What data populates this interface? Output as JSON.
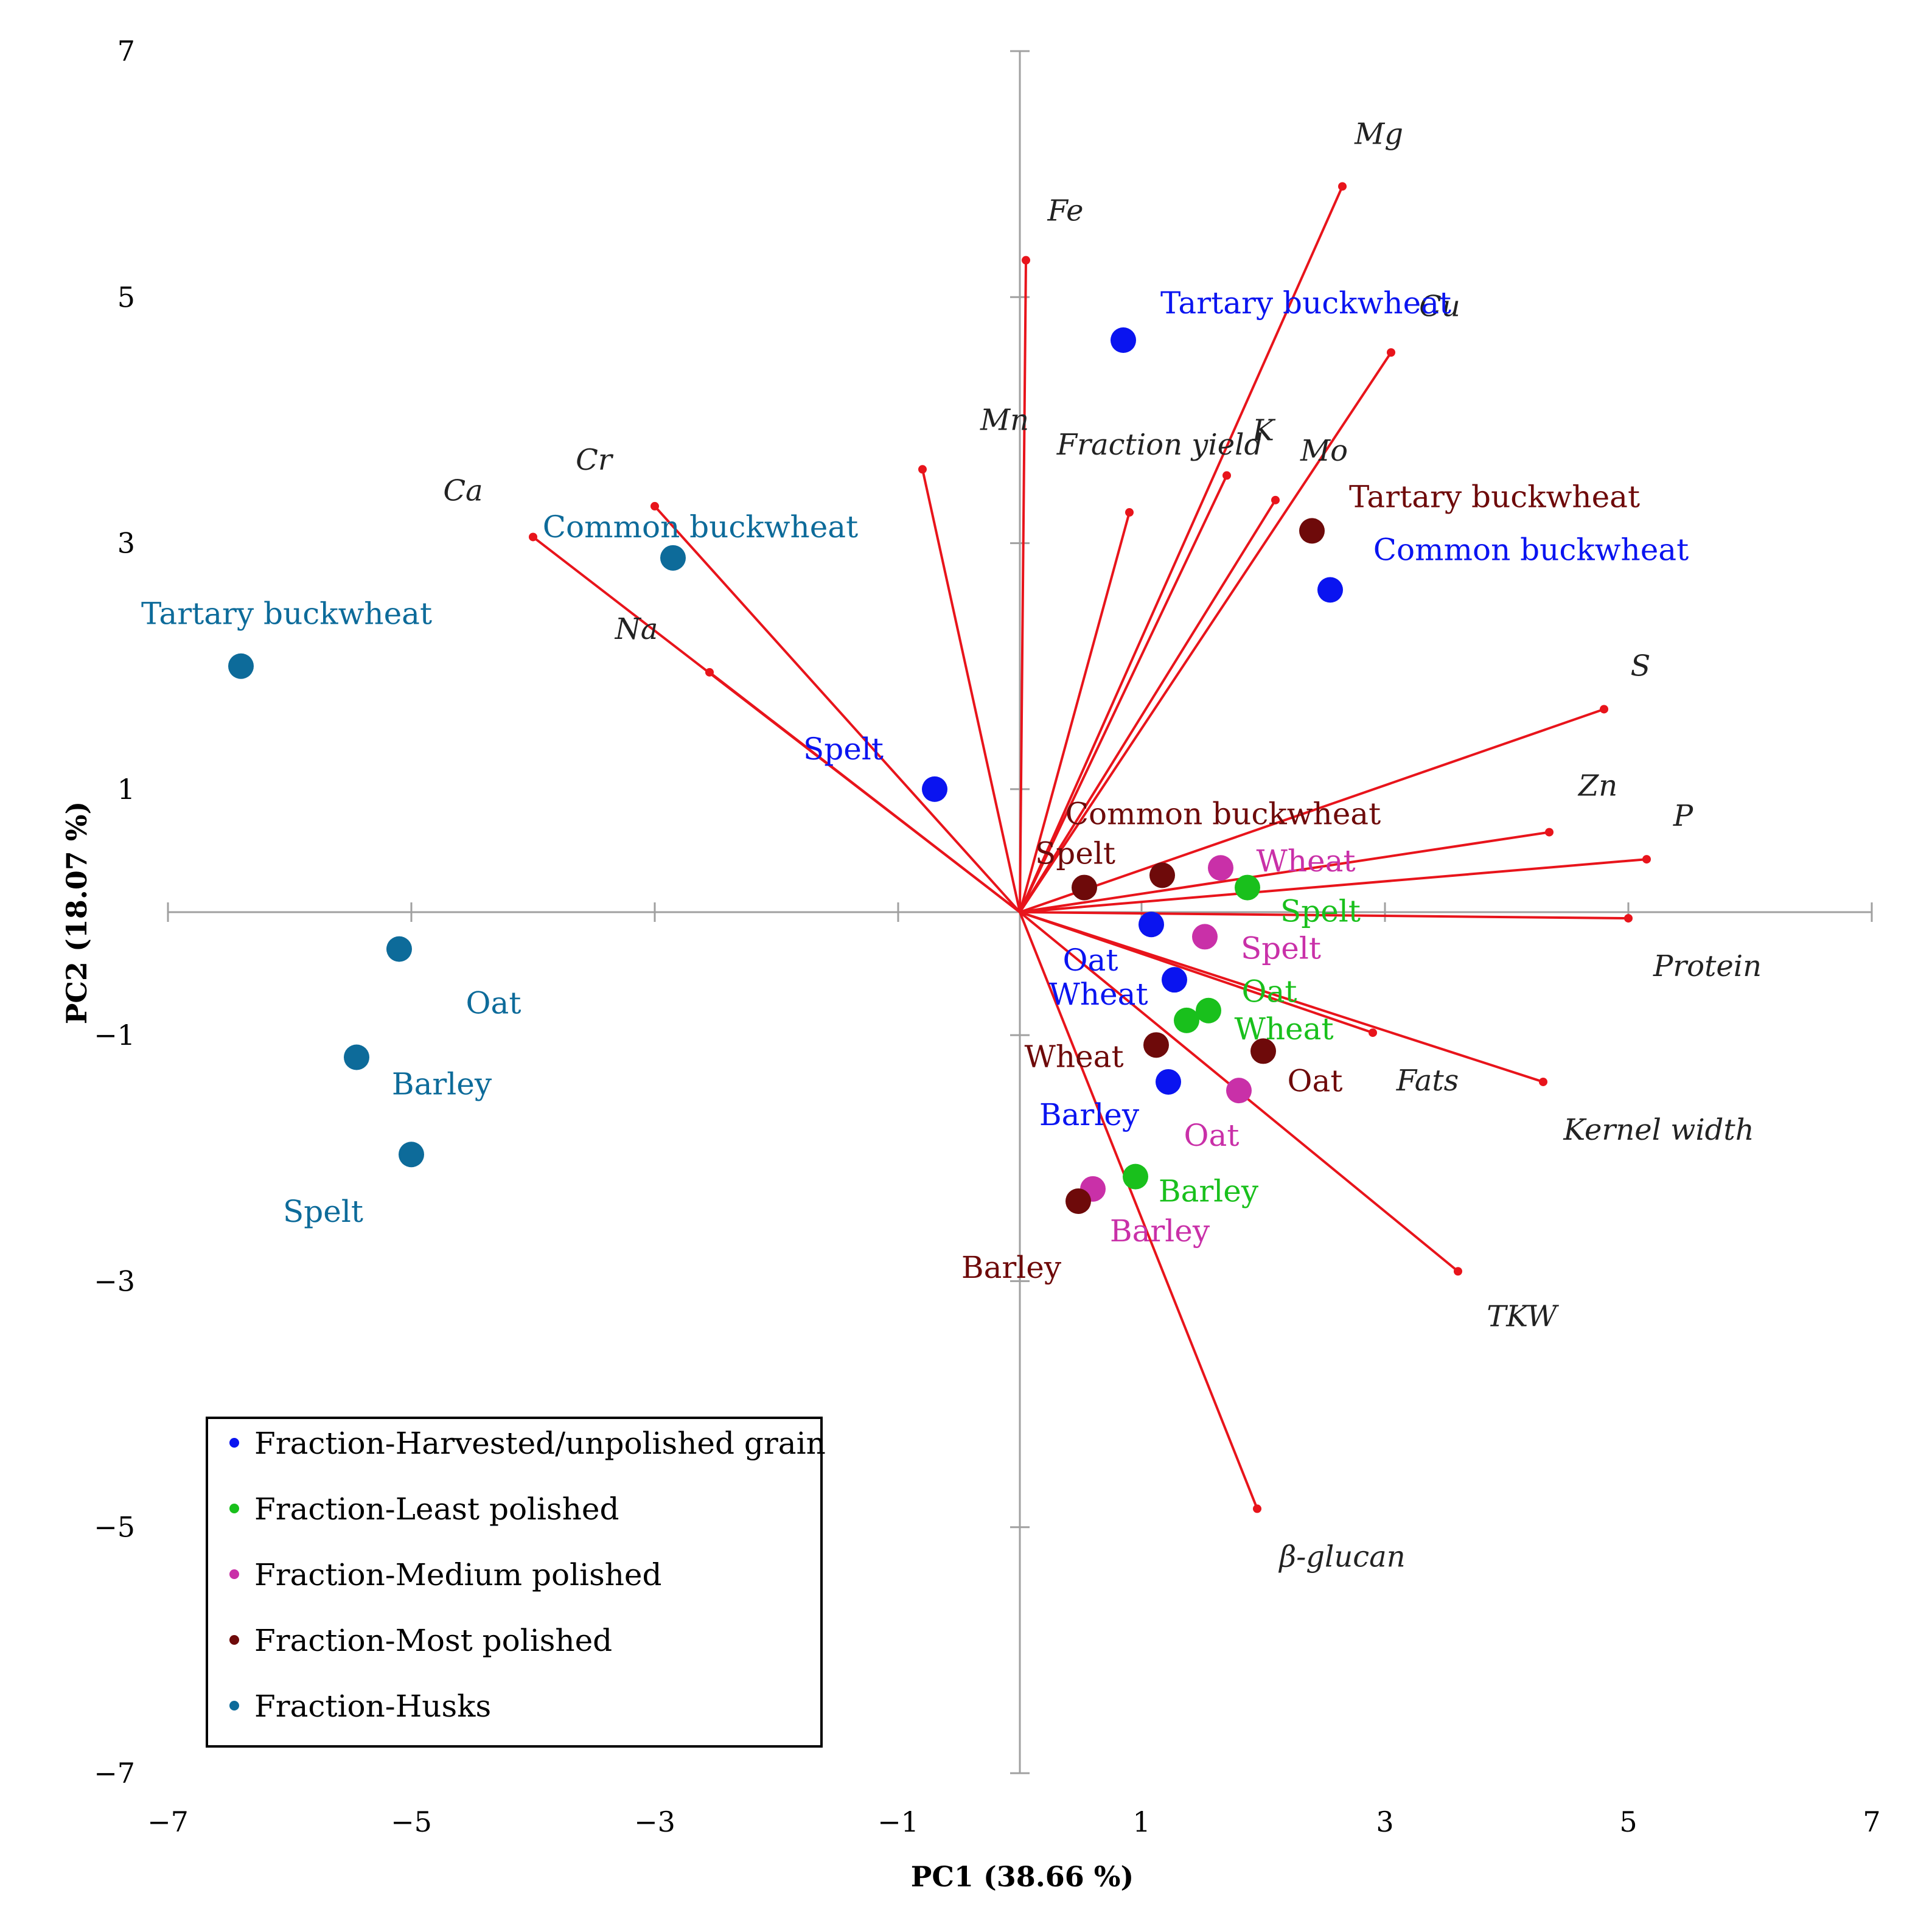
{
  "chart_data": {
    "type": "scatter",
    "subtype": "pca-biplot",
    "xlabel": "PC1 (38.66 %)",
    "ylabel": "PC2 (18.07 %)",
    "xlim": [
      -7,
      7
    ],
    "ylim": [
      -7,
      7
    ],
    "x_ticks": [
      -7,
      -5,
      -3,
      -1,
      1,
      3,
      5,
      7
    ],
    "y_ticks": [
      7,
      5,
      3,
      1,
      -1,
      -3,
      -5,
      -7
    ],
    "x_tick_labels": [
      "−7",
      "−5",
      "−3",
      "−1",
      "1",
      "3",
      "5",
      "7"
    ],
    "y_tick_labels": [
      "7",
      "5",
      "3",
      "1",
      "−1",
      "−3",
      "−5",
      "−7"
    ],
    "loading_color": "#e8141b",
    "loadings": [
      {
        "name": "Mg",
        "x": 2.65,
        "y": 5.9
      },
      {
        "name": "Fe",
        "x": 0.05,
        "y": 5.3
      },
      {
        "name": "Cu",
        "x": 3.05,
        "y": 4.55
      },
      {
        "name": "Mn",
        "x": -0.8,
        "y": 3.6
      },
      {
        "name": "Fraction yield",
        "x": 0.9,
        "y": 3.25
      },
      {
        "name": "K",
        "x": 1.7,
        "y": 3.55
      },
      {
        "name": "Mo",
        "x": 2.1,
        "y": 3.35
      },
      {
        "name": "Cr",
        "x": -3.0,
        "y": 3.3
      },
      {
        "name": "Ca",
        "x": -4.0,
        "y": 3.05
      },
      {
        "name": "Na",
        "x": -2.55,
        "y": 1.95
      },
      {
        "name": "S",
        "x": 4.8,
        "y": 1.65
      },
      {
        "name": "Zn",
        "x": 4.35,
        "y": 0.65
      },
      {
        "name": "P",
        "x": 5.15,
        "y": 0.43
      },
      {
        "name": "Protein",
        "x": 5.0,
        "y": -0.05
      },
      {
        "name": "Fats",
        "x": 2.9,
        "y": -0.98
      },
      {
        "name": "Kernel width",
        "x": 4.3,
        "y": -1.38
      },
      {
        "name": "TKW",
        "x": 3.6,
        "y": -2.92
      },
      {
        "name": "β-glucan",
        "x": 1.95,
        "y": -4.85
      }
    ],
    "series": [
      {
        "name": "Fraction-Harvested/unpolished grain",
        "color": "#0a14f0",
        "points": [
          {
            "label": "Tartary buckwheat",
            "x": 0.85,
            "y": 4.65
          },
          {
            "label": "Common buckwheat",
            "x": 2.55,
            "y": 2.62
          },
          {
            "label": "Spelt",
            "x": -0.7,
            "y": 1.0
          },
          {
            "label": "Oat",
            "x": 1.08,
            "y": -0.1
          },
          {
            "label": "Wheat",
            "x": 1.27,
            "y": -0.55
          },
          {
            "label": "Barley",
            "x": 1.22,
            "y": -1.38
          }
        ]
      },
      {
        "name": "Fraction-Least polished",
        "color": "#19c01c",
        "points": [
          {
            "label": "Spelt",
            "x": 1.87,
            "y": 0.2
          },
          {
            "label": "Oat",
            "x": 1.55,
            "y": -0.8
          },
          {
            "label": "Wheat",
            "x": 1.37,
            "y": -0.88
          },
          {
            "label": "Barley",
            "x": 0.95,
            "y": -2.15
          }
        ]
      },
      {
        "name": "Fraction-Medium polished",
        "color": "#c930a8",
        "points": [
          {
            "label": "Wheat",
            "x": 1.65,
            "y": 0.36
          },
          {
            "label": "Spelt",
            "x": 1.52,
            "y": -0.2
          },
          {
            "label": "Oat",
            "x": 1.8,
            "y": -1.45
          },
          {
            "label": "Barley",
            "x": 0.6,
            "y": -2.25
          }
        ]
      },
      {
        "name": "Fraction-Most polished",
        "color": "#6e0a0a",
        "points": [
          {
            "label": "Tartary buckwheat",
            "x": 2.4,
            "y": 3.1
          },
          {
            "label": "Common buckwheat",
            "x": 1.17,
            "y": 0.3
          },
          {
            "label": "Spelt",
            "x": 0.53,
            "y": 0.2
          },
          {
            "label": "Wheat",
            "x": 1.12,
            "y": -1.08
          },
          {
            "label": "Oat",
            "x": 2.0,
            "y": -1.13
          },
          {
            "label": "Barley",
            "x": 0.48,
            "y": -2.35
          }
        ]
      },
      {
        "name": "Fraction-Husks",
        "color": "#0d6b9a",
        "points": [
          {
            "label": "Tartary buckwheat",
            "x": -6.4,
            "y": 2.0
          },
          {
            "label": "Common buckwheat",
            "x": -2.85,
            "y": 2.88
          },
          {
            "label": "Oat",
            "x": -5.1,
            "y": -0.3
          },
          {
            "label": "Barley",
            "x": -5.45,
            "y": -1.18
          },
          {
            "label": "Spelt",
            "x": -5.0,
            "y": -1.97
          }
        ]
      }
    ]
  }
}
